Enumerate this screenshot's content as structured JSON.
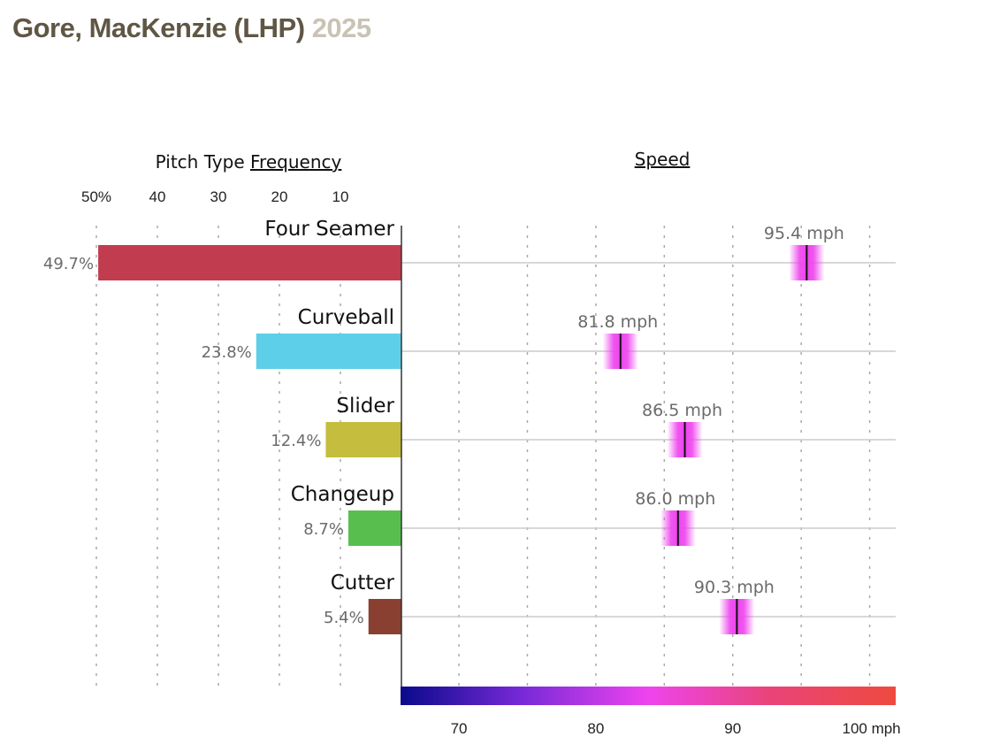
{
  "title": {
    "name": "Gore, MacKenzie (LHP)",
    "year": "2025"
  },
  "colors": {
    "title": "#5f5644",
    "year": "#c8c3b4"
  },
  "chart_data": {
    "type": "bar",
    "freq_header_prefix": "Pitch Type",
    "freq_header_link": "Frequency",
    "speed_header": "Speed",
    "freq_ticks": [
      "50%",
      "40",
      "30",
      "20",
      "10"
    ],
    "freq_tick_values": [
      50,
      40,
      30,
      20,
      10
    ],
    "speed_ticks": [
      "70",
      "80",
      "90",
      "100 mph"
    ],
    "speed_tick_values": [
      70,
      80,
      90,
      100
    ],
    "freq_range": [
      0,
      50
    ],
    "speed_range": [
      65.8,
      101.9
    ],
    "colorbar_stops": [
      "#0a0a8c",
      "#7a2ad8",
      "#ee44ee",
      "#e94477",
      "#ee4a40"
    ],
    "pitches": [
      {
        "name": "Four Seamer",
        "freq": 49.7,
        "freq_label": "49.7%",
        "speed": 95.4,
        "speed_label": "95.4 mph",
        "color": "#c23c4f"
      },
      {
        "name": "Curveball",
        "freq": 23.8,
        "freq_label": "23.8%",
        "speed": 81.8,
        "speed_label": "81.8 mph",
        "color": "#5ecfe8"
      },
      {
        "name": "Slider",
        "freq": 12.4,
        "freq_label": "12.4%",
        "speed": 86.5,
        "speed_label": "86.5 mph",
        "color": "#c4bd3e"
      },
      {
        "name": "Changeup",
        "freq": 8.7,
        "freq_label": "8.7%",
        "speed": 86.0,
        "speed_label": "86.0 mph",
        "color": "#58bf4f"
      },
      {
        "name": "Cutter",
        "freq": 5.4,
        "freq_label": "5.4%",
        "speed": 90.3,
        "speed_label": "90.3 mph",
        "color": "#8a4030"
      }
    ]
  }
}
